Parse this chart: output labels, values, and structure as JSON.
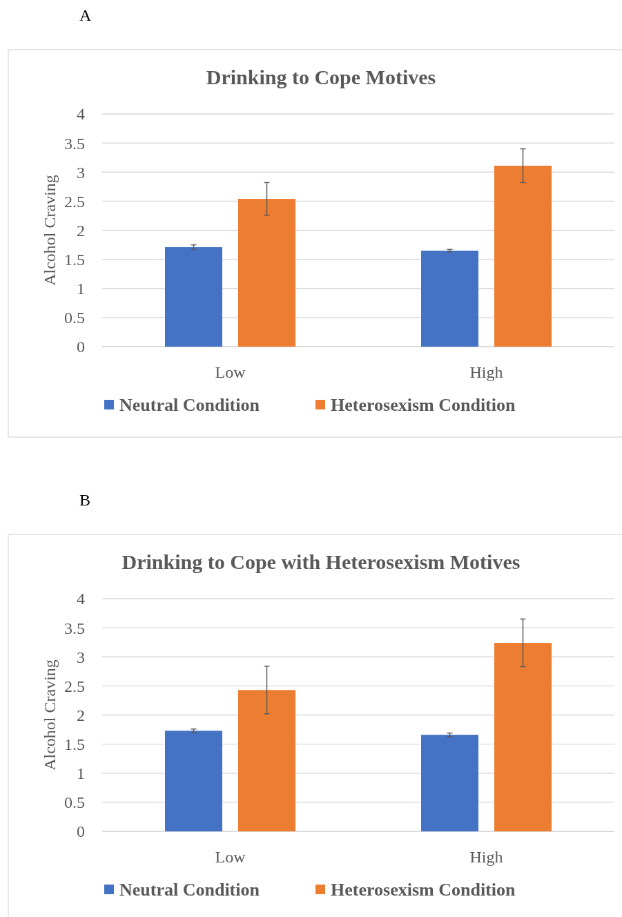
{
  "chart_data": [
    {
      "type": "bar",
      "title": "Drinking to Cope Motives",
      "ylabel": "Alcohol Craving",
      "categories": [
        "Low",
        "High"
      ],
      "ylim": [
        0,
        4
      ],
      "yticks": [
        0,
        0.5,
        1,
        1.5,
        2,
        2.5,
        3,
        3.5,
        4
      ],
      "grid": "y",
      "legend": "bottom",
      "annotations": [
        "A"
      ],
      "series": [
        {
          "name": "Neutral Condition",
          "color": "#4472c4",
          "values": [
            1.71,
            1.65
          ],
          "errors": [
            0.04,
            0.02
          ]
        },
        {
          "name": "Heterosexism Condition",
          "color": "#ed7d31",
          "values": [
            2.54,
            3.11
          ],
          "errors": [
            0.28,
            0.29
          ]
        }
      ]
    },
    {
      "type": "bar",
      "title": "Drinking to Cope with Heterosexism Motives",
      "ylabel": "Alcohol Craving",
      "categories": [
        "Low",
        "High"
      ],
      "ylim": [
        0,
        4
      ],
      "yticks": [
        0,
        0.5,
        1,
        1.5,
        2,
        2.5,
        3,
        3.5,
        4
      ],
      "grid": "y",
      "legend": "bottom",
      "annotations": [
        "B"
      ],
      "series": [
        {
          "name": "Neutral Condition",
          "color": "#4472c4",
          "values": [
            1.73,
            1.66
          ],
          "errors": [
            0.03,
            0.03
          ]
        },
        {
          "name": "Heterosexism Condition",
          "color": "#ed7d31",
          "values": [
            2.43,
            3.24
          ],
          "errors": [
            0.41,
            0.41
          ]
        }
      ]
    }
  ]
}
